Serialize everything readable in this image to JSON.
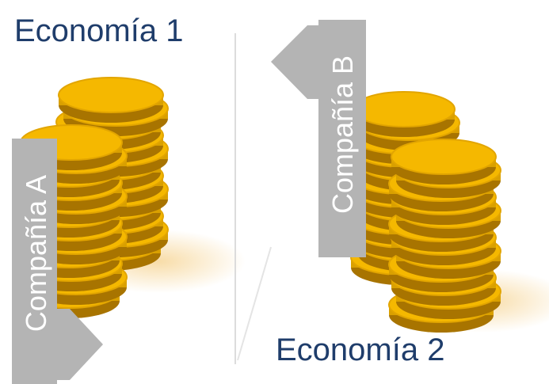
{
  "economies": [
    {
      "label": "Economía 1"
    },
    {
      "label": "Economía 2"
    }
  ],
  "companies": [
    {
      "label": "Compañía A"
    },
    {
      "label": "Compañía B"
    }
  ]
}
